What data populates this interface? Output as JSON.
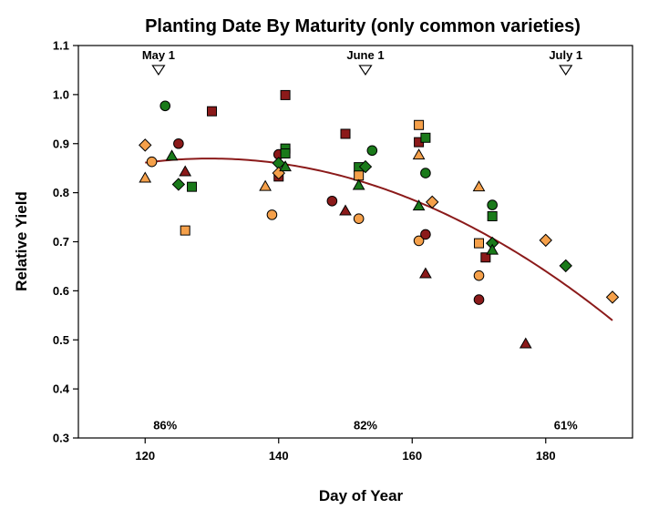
{
  "chart_data": {
    "type": "scatter",
    "title": "Planting Date By Maturity (only common varieties)",
    "xlabel": "Day of Year",
    "ylabel": "Relative Yield",
    "xlim": [
      110,
      193
    ],
    "ylim": [
      0.3,
      1.1
    ],
    "x_ticks": [
      120,
      140,
      160,
      180
    ],
    "y_ticks": [
      0.3,
      0.4,
      0.5,
      0.6,
      0.7,
      0.8,
      0.9,
      1.0,
      1.1
    ],
    "y_tick_labels": [
      "0.3",
      "0.4",
      "0.5",
      "0.6",
      "0.7",
      "0.8",
      "0.9",
      "1.0",
      "1.1"
    ],
    "grid": false,
    "legend": "none",
    "date_markers": [
      {
        "label": "May 1",
        "x": 122,
        "y": 1.05
      },
      {
        "label": "June 1",
        "x": 153,
        "y": 1.05
      },
      {
        "label": "July 1",
        "x": 183,
        "y": 1.05
      }
    ],
    "bottom_annotations": [
      {
        "text": "86%",
        "x": 123,
        "y": 0.325
      },
      {
        "text": "82%",
        "x": 153,
        "y": 0.325
      },
      {
        "text": "61%",
        "x": 183,
        "y": 0.325
      }
    ],
    "colors": {
      "dark_red": "#8b1a1a",
      "orange": "#f5a04a",
      "green": "#1a7a1a",
      "trend": "#8b1a1a",
      "outline": "#000000"
    },
    "points": [
      {
        "x": 120,
        "y": 0.897,
        "shape": "diamond",
        "color": "orange"
      },
      {
        "x": 120,
        "y": 0.83,
        "shape": "triangle",
        "color": "orange"
      },
      {
        "x": 121,
        "y": 0.863,
        "shape": "circle",
        "color": "orange"
      },
      {
        "x": 123,
        "y": 0.977,
        "shape": "circle",
        "color": "green"
      },
      {
        "x": 124,
        "y": 0.875,
        "shape": "triangle",
        "color": "green"
      },
      {
        "x": 125,
        "y": 0.9,
        "shape": "circle",
        "color": "dark_red"
      },
      {
        "x": 125,
        "y": 0.817,
        "shape": "diamond",
        "color": "green"
      },
      {
        "x": 126,
        "y": 0.843,
        "shape": "triangle",
        "color": "dark_red"
      },
      {
        "x": 126,
        "y": 0.723,
        "shape": "square",
        "color": "orange"
      },
      {
        "x": 127,
        "y": 0.812,
        "shape": "square",
        "color": "green"
      },
      {
        "x": 130,
        "y": 0.966,
        "shape": "square",
        "color": "dark_red"
      },
      {
        "x": 138,
        "y": 0.813,
        "shape": "triangle",
        "color": "orange"
      },
      {
        "x": 139,
        "y": 0.755,
        "shape": "circle",
        "color": "orange"
      },
      {
        "x": 140,
        "y": 0.878,
        "shape": "circle",
        "color": "dark_red"
      },
      {
        "x": 140,
        "y": 0.86,
        "shape": "diamond",
        "color": "green"
      },
      {
        "x": 140,
        "y": 0.833,
        "shape": "square",
        "color": "dark_red"
      },
      {
        "x": 140,
        "y": 0.84,
        "shape": "diamond",
        "color": "orange"
      },
      {
        "x": 141,
        "y": 0.999,
        "shape": "square",
        "color": "dark_red"
      },
      {
        "x": 141,
        "y": 0.89,
        "shape": "square",
        "color": "green"
      },
      {
        "x": 141,
        "y": 0.88,
        "shape": "square",
        "color": "green"
      },
      {
        "x": 141,
        "y": 0.853,
        "shape": "triangle",
        "color": "green"
      },
      {
        "x": 148,
        "y": 0.783,
        "shape": "circle",
        "color": "dark_red"
      },
      {
        "x": 150,
        "y": 0.92,
        "shape": "square",
        "color": "dark_red"
      },
      {
        "x": 150,
        "y": 0.763,
        "shape": "triangle",
        "color": "dark_red"
      },
      {
        "x": 152,
        "y": 0.852,
        "shape": "square",
        "color": "green"
      },
      {
        "x": 152,
        "y": 0.835,
        "shape": "square",
        "color": "orange"
      },
      {
        "x": 152,
        "y": 0.815,
        "shape": "triangle",
        "color": "green"
      },
      {
        "x": 152,
        "y": 0.747,
        "shape": "circle",
        "color": "orange"
      },
      {
        "x": 153,
        "y": 0.853,
        "shape": "diamond",
        "color": "green"
      },
      {
        "x": 154,
        "y": 0.886,
        "shape": "circle",
        "color": "green"
      },
      {
        "x": 161,
        "y": 0.938,
        "shape": "square",
        "color": "orange"
      },
      {
        "x": 161,
        "y": 0.903,
        "shape": "square",
        "color": "dark_red"
      },
      {
        "x": 161,
        "y": 0.877,
        "shape": "triangle",
        "color": "orange"
      },
      {
        "x": 161,
        "y": 0.773,
        "shape": "triangle",
        "color": "green"
      },
      {
        "x": 161,
        "y": 0.702,
        "shape": "circle",
        "color": "orange"
      },
      {
        "x": 162,
        "y": 0.912,
        "shape": "square",
        "color": "green"
      },
      {
        "x": 162,
        "y": 0.84,
        "shape": "circle",
        "color": "green"
      },
      {
        "x": 162,
        "y": 0.715,
        "shape": "circle",
        "color": "dark_red"
      },
      {
        "x": 162,
        "y": 0.635,
        "shape": "triangle",
        "color": "dark_red"
      },
      {
        "x": 163,
        "y": 0.781,
        "shape": "diamond",
        "color": "orange"
      },
      {
        "x": 170,
        "y": 0.812,
        "shape": "triangle",
        "color": "orange"
      },
      {
        "x": 170,
        "y": 0.697,
        "shape": "square",
        "color": "orange"
      },
      {
        "x": 170,
        "y": 0.631,
        "shape": "circle",
        "color": "orange"
      },
      {
        "x": 170,
        "y": 0.582,
        "shape": "circle",
        "color": "dark_red"
      },
      {
        "x": 171,
        "y": 0.668,
        "shape": "square",
        "color": "dark_red"
      },
      {
        "x": 172,
        "y": 0.775,
        "shape": "circle",
        "color": "green"
      },
      {
        "x": 172,
        "y": 0.752,
        "shape": "square",
        "color": "green"
      },
      {
        "x": 172,
        "y": 0.697,
        "shape": "diamond",
        "color": "green"
      },
      {
        "x": 172,
        "y": 0.683,
        "shape": "triangle",
        "color": "green"
      },
      {
        "x": 177,
        "y": 0.492,
        "shape": "triangle",
        "color": "dark_red"
      },
      {
        "x": 180,
        "y": 0.703,
        "shape": "diamond",
        "color": "orange"
      },
      {
        "x": 183,
        "y": 0.651,
        "shape": "diamond",
        "color": "green"
      },
      {
        "x": 190,
        "y": 0.587,
        "shape": "diamond",
        "color": "orange"
      }
    ],
    "trend_line": {
      "type": "quadratic",
      "x_range": [
        120,
        190
      ],
      "points": [
        {
          "x": 120,
          "y": 0.86
        },
        {
          "x": 133,
          "y": 0.871
        },
        {
          "x": 155,
          "y": 0.81
        },
        {
          "x": 190,
          "y": 0.54
        }
      ]
    }
  }
}
